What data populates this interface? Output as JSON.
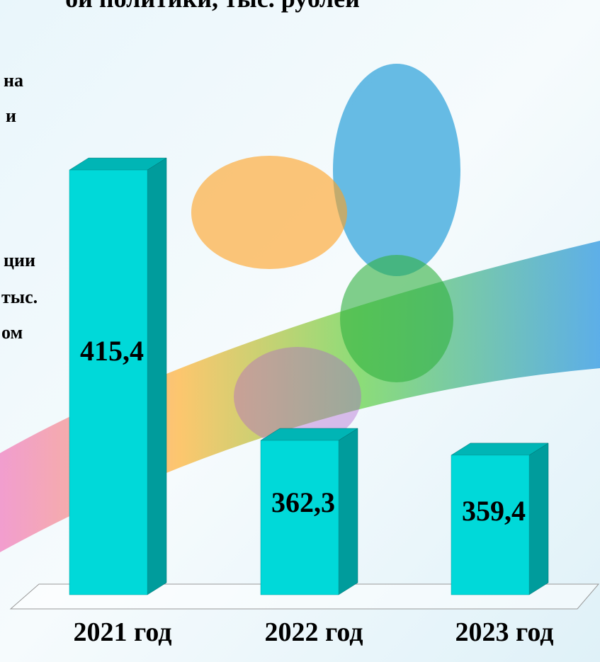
{
  "chart_data": {
    "type": "bar3d",
    "title": "ой политики, тыс. рублей",
    "annotations": [
      "на",
      "и",
      "ции",
      "тыс.",
      "ом"
    ],
    "categories": [
      "2021 год",
      "2022 год",
      "2023 год"
    ],
    "values": [
      415.4,
      362.3,
      359.4
    ],
    "value_labels": [
      "415,4",
      "362,3",
      "359,4"
    ],
    "color": "#00d9d9",
    "ylim": [
      332,
      420
    ]
  }
}
